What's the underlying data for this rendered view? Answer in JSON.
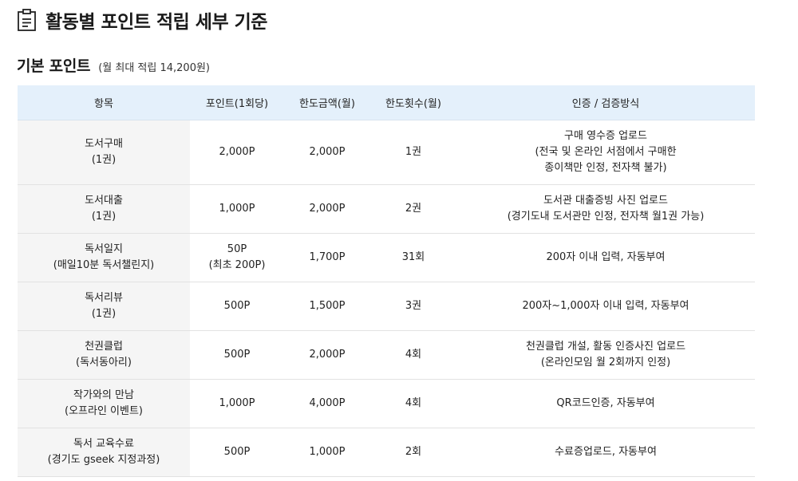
{
  "header": {
    "title": "활동별 포인트 적립 세부 기준",
    "icon": "document-list-icon"
  },
  "section": {
    "title": "기본 포인트",
    "subtitle": "(월 최대 적립 14,200원)"
  },
  "table": {
    "header_bg": "#e4f0fb",
    "item_bg": "#f5f5f5",
    "columns": [
      "항목",
      "포인트(1회당)",
      "한도금액(월)",
      "한도횟수(월)",
      "인증 / 검증방식"
    ],
    "rows": [
      {
        "item": [
          "도서구매",
          "(1권)"
        ],
        "points": [
          "2,000P"
        ],
        "limit_amount": "2,000P",
        "limit_count": "1권",
        "verify": [
          "구매 영수증 업로드",
          "(전국 및 온라인 서점에서 구매한",
          "종이책만 인정, 전자책 불가)"
        ]
      },
      {
        "item": [
          "도서대출",
          "(1권)"
        ],
        "points": [
          "1,000P"
        ],
        "limit_amount": "2,000P",
        "limit_count": "2권",
        "verify": [
          "도서관 대출증빙 사진 업로드",
          "(경기도내 도서관만 인정, 전자책 월1권 가능)"
        ]
      },
      {
        "item": [
          "독서일지",
          "(매일10분 독서챌린지)"
        ],
        "points": [
          "50P",
          "(최초 200P)"
        ],
        "limit_amount": "1,700P",
        "limit_count": "31회",
        "verify": [
          "200자 이내 입력, 자동부여"
        ]
      },
      {
        "item": [
          "독서리뷰",
          "(1권)"
        ],
        "points": [
          "500P"
        ],
        "limit_amount": "1,500P",
        "limit_count": "3권",
        "verify": [
          "200자~1,000자 이내 입력, 자동부여"
        ]
      },
      {
        "item": [
          "천권클럽",
          "(독서동아리)"
        ],
        "points": [
          "500P"
        ],
        "limit_amount": "2,000P",
        "limit_count": "4회",
        "verify": [
          "천권클럽 개설, 활동 인증사진 업로드",
          "(온라인모임 월 2회까지 인정)"
        ]
      },
      {
        "item": [
          "작가와의 만남",
          "(오프라인 이벤트)"
        ],
        "points": [
          "1,000P"
        ],
        "limit_amount": "4,000P",
        "limit_count": "4회",
        "verify": [
          "QR코드인증, 자동부여"
        ]
      },
      {
        "item": [
          "독서 교육수료",
          "(경기도 gseek 지정과정)"
        ],
        "points": [
          "500P"
        ],
        "limit_amount": "1,000P",
        "limit_count": "2회",
        "verify": [
          "수료증업로드, 자동부여"
        ]
      }
    ]
  }
}
